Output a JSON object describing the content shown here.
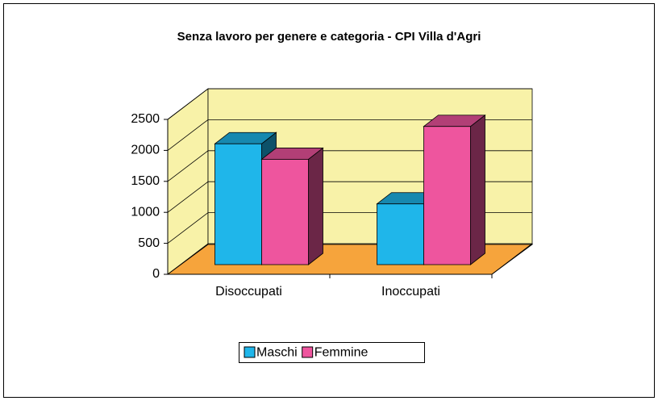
{
  "chart_data": {
    "type": "bar3d",
    "title": "Senza lavoro per genere e categoria - CPI Villa d'Agri",
    "categories": [
      "Disoccupati",
      "Inoccupati"
    ],
    "series": [
      {
        "name": "Maschi",
        "color": "#1fb6ea",
        "values": [
          1950,
          980
        ]
      },
      {
        "name": "Femmine",
        "color": "#ee559e",
        "values": [
          1700,
          2230
        ]
      }
    ],
    "ylim": [
      0,
      2500
    ],
    "yticks": [
      0,
      500,
      1000,
      1500,
      2000,
      2500
    ],
    "grid": true,
    "legend": "bottom"
  }
}
